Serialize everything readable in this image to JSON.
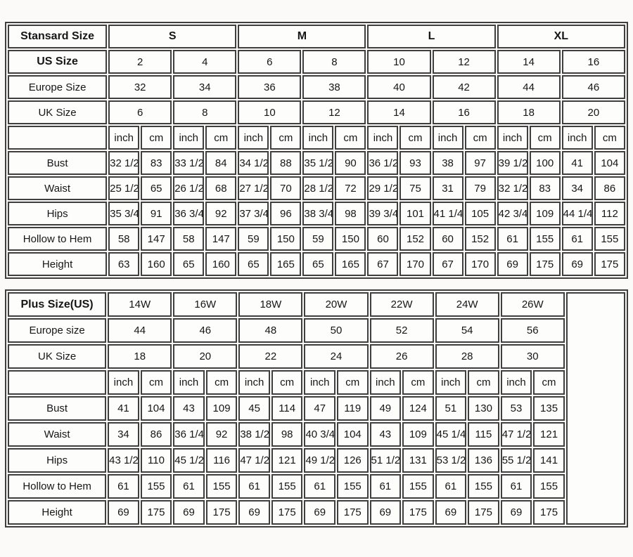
{
  "colors": {
    "border": "#3f3f3f",
    "background": "#fbfaf8",
    "cell_background": "#fdfdfc",
    "text": "#161616"
  },
  "standard_table": {
    "title": "Stansard Size",
    "size_groups": [
      "S",
      "M",
      "L",
      "XL"
    ],
    "unit_labels": [
      "inch",
      "cm"
    ],
    "size_rows": [
      {
        "label": "US Size",
        "bold": true,
        "values": [
          "2",
          "4",
          "6",
          "8",
          "10",
          "12",
          "14",
          "16"
        ]
      },
      {
        "label": "Europe Size",
        "values": [
          "32",
          "34",
          "36",
          "38",
          "40",
          "42",
          "44",
          "46"
        ]
      },
      {
        "label": "UK Size",
        "values": [
          "6",
          "8",
          "10",
          "12",
          "14",
          "16",
          "18",
          "20"
        ]
      }
    ],
    "measure_rows": [
      {
        "label": "Bust",
        "values": [
          "32 1/2",
          "83",
          "33 1/2",
          "84",
          "34 1/2",
          "88",
          "35 1/2",
          "90",
          "36 1/2",
          "93",
          "38",
          "97",
          "39 1/2",
          "100",
          "41",
          "104"
        ]
      },
      {
        "label": "Waist",
        "values": [
          "25 1/2",
          "65",
          "26 1/2",
          "68",
          "27 1/2",
          "70",
          "28 1/2",
          "72",
          "29 1/2",
          "75",
          "31",
          "79",
          "32 1/2",
          "83",
          "34",
          "86"
        ]
      },
      {
        "label": "Hips",
        "values": [
          "35 3/4",
          "91",
          "36 3/4",
          "92",
          "37 3/4",
          "96",
          "38 3/4",
          "98",
          "39 3/4",
          "101",
          "41 1/4",
          "105",
          "42 3/4",
          "109",
          "44 1/4",
          "112"
        ]
      },
      {
        "label": "Hollow to Hem",
        "values": [
          "58",
          "147",
          "58",
          "147",
          "59",
          "150",
          "59",
          "150",
          "60",
          "152",
          "60",
          "152",
          "61",
          "155",
          "61",
          "155"
        ]
      },
      {
        "label": "Height",
        "values": [
          "63",
          "160",
          "65",
          "160",
          "65",
          "165",
          "65",
          "165",
          "67",
          "170",
          "67",
          "170",
          "69",
          "175",
          "69",
          "175"
        ]
      }
    ]
  },
  "plus_table": {
    "title": "Plus Size(US)",
    "size_groups": [
      "14W",
      "16W",
      "18W",
      "20W",
      "22W",
      "24W",
      "26W"
    ],
    "unit_labels": [
      "inch",
      "cm"
    ],
    "trailing_empty_column": true,
    "size_rows": [
      {
        "label": "Europe size",
        "values": [
          "44",
          "46",
          "48",
          "50",
          "52",
          "54",
          "56"
        ]
      },
      {
        "label": "UK Size",
        "values": [
          "18",
          "20",
          "22",
          "24",
          "26",
          "28",
          "30"
        ]
      }
    ],
    "measure_rows": [
      {
        "label": "Bust",
        "values": [
          "41",
          "104",
          "43",
          "109",
          "45",
          "114",
          "47",
          "119",
          "49",
          "124",
          "51",
          "130",
          "53",
          "135"
        ]
      },
      {
        "label": "Waist",
        "values": [
          "34",
          "86",
          "36 1/4",
          "92",
          "38 1/2",
          "98",
          "40 3/4",
          "104",
          "43",
          "109",
          "45 1/4",
          "115",
          "47 1/2",
          "121"
        ]
      },
      {
        "label": "Hips",
        "values": [
          "43 1/2",
          "110",
          "45 1/2",
          "116",
          "47 1/2",
          "121",
          "49 1/2",
          "126",
          "51 1/2",
          "131",
          "53 1/2",
          "136",
          "55 1/2",
          "141"
        ]
      },
      {
        "label": "Hollow to Hem",
        "values": [
          "61",
          "155",
          "61",
          "155",
          "61",
          "155",
          "61",
          "155",
          "61",
          "155",
          "61",
          "155",
          "61",
          "155"
        ]
      },
      {
        "label": "Height",
        "values": [
          "69",
          "175",
          "69",
          "175",
          "69",
          "175",
          "69",
          "175",
          "69",
          "175",
          "69",
          "175",
          "69",
          "175"
        ]
      }
    ]
  }
}
